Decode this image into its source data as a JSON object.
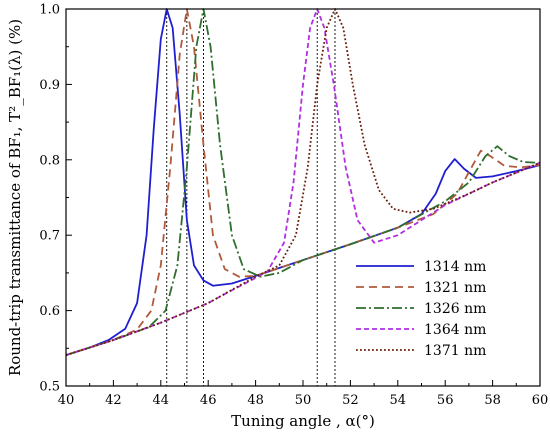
{
  "chart_data": {
    "type": "line",
    "xlabel": "Tuning angle , α(°)",
    "ylabel": "Round-trip transmittance of BF₁, T²_BF₁(λ) (%)",
    "xlim": [
      40,
      60
    ],
    "ylim": [
      0.5,
      1.0
    ],
    "xticks": [
      "40",
      "42",
      "44",
      "46",
      "48",
      "50",
      "52",
      "54",
      "56",
      "58",
      "60"
    ],
    "yticks": [
      "0.5",
      "0.6",
      "0.7",
      "0.8",
      "0.9",
      "1.0"
    ],
    "grid": false,
    "legend_position": "bottom-right",
    "vertical_markers": [
      44.25,
      45.1,
      45.8,
      50.6,
      51.35
    ],
    "series": [
      {
        "name": "1314 nm",
        "color": "#1f1fd0",
        "dash": "solid",
        "points": [
          [
            40,
            0.541
          ],
          [
            41,
            0.551
          ],
          [
            41.8,
            0.561
          ],
          [
            42.5,
            0.576
          ],
          [
            43,
            0.61
          ],
          [
            43.4,
            0.7
          ],
          [
            43.7,
            0.84
          ],
          [
            44,
            0.96
          ],
          [
            44.25,
            1.0
          ],
          [
            44.5,
            0.975
          ],
          [
            44.8,
            0.86
          ],
          [
            45.1,
            0.72
          ],
          [
            45.4,
            0.66
          ],
          [
            45.8,
            0.64
          ],
          [
            46.2,
            0.633
          ],
          [
            47,
            0.636
          ],
          [
            48,
            0.646
          ],
          [
            50,
            0.667
          ],
          [
            52,
            0.688
          ],
          [
            54,
            0.71
          ],
          [
            55,
            0.728
          ],
          [
            55.6,
            0.755
          ],
          [
            56,
            0.785
          ],
          [
            56.4,
            0.801
          ],
          [
            56.8,
            0.788
          ],
          [
            57.3,
            0.776
          ],
          [
            58,
            0.778
          ],
          [
            59,
            0.785
          ],
          [
            60,
            0.793
          ]
        ]
      },
      {
        "name": "1321 nm",
        "color": "#b05a3a",
        "dash": "8,5",
        "points": [
          [
            40,
            0.541
          ],
          [
            42,
            0.561
          ],
          [
            43,
            0.575
          ],
          [
            43.6,
            0.6
          ],
          [
            44,
            0.66
          ],
          [
            44.4,
            0.79
          ],
          [
            44.8,
            0.94
          ],
          [
            45.1,
            1.0
          ],
          [
            45.4,
            0.95
          ],
          [
            45.8,
            0.82
          ],
          [
            46.2,
            0.7
          ],
          [
            46.7,
            0.655
          ],
          [
            47.3,
            0.645
          ],
          [
            48,
            0.646
          ],
          [
            50,
            0.667
          ],
          [
            52,
            0.688
          ],
          [
            54,
            0.71
          ],
          [
            55.5,
            0.728
          ],
          [
            56.5,
            0.755
          ],
          [
            57.2,
            0.795
          ],
          [
            57.5,
            0.812
          ],
          [
            57.9,
            0.805
          ],
          [
            58.5,
            0.792
          ],
          [
            59.2,
            0.79
          ],
          [
            60,
            0.793
          ]
        ]
      },
      {
        "name": "1326 nm",
        "color": "#2e6e2e",
        "dash": "10,3,2,3",
        "points": [
          [
            40,
            0.541
          ],
          [
            42,
            0.561
          ],
          [
            43.5,
            0.578
          ],
          [
            44.2,
            0.6
          ],
          [
            44.7,
            0.66
          ],
          [
            45.1,
            0.79
          ],
          [
            45.5,
            0.95
          ],
          [
            45.8,
            1.0
          ],
          [
            46.1,
            0.95
          ],
          [
            46.5,
            0.82
          ],
          [
            47,
            0.7
          ],
          [
            47.5,
            0.655
          ],
          [
            48.2,
            0.645
          ],
          [
            49,
            0.65
          ],
          [
            50,
            0.667
          ],
          [
            52,
            0.688
          ],
          [
            54,
            0.71
          ],
          [
            56,
            0.745
          ],
          [
            57,
            0.77
          ],
          [
            57.7,
            0.805
          ],
          [
            58.2,
            0.818
          ],
          [
            58.7,
            0.805
          ],
          [
            59.3,
            0.797
          ],
          [
            60,
            0.796
          ]
        ]
      },
      {
        "name": "1364 nm",
        "color": "#b030e0",
        "dash": "5,3",
        "points": [
          [
            40,
            0.541
          ],
          [
            42,
            0.561
          ],
          [
            44,
            0.584
          ],
          [
            46,
            0.61
          ],
          [
            47,
            0.627
          ],
          [
            47.8,
            0.64
          ],
          [
            48.5,
            0.652
          ],
          [
            49.2,
            0.69
          ],
          [
            49.6,
            0.77
          ],
          [
            50,
            0.9
          ],
          [
            50.3,
            0.975
          ],
          [
            50.6,
            1.0
          ],
          [
            50.9,
            0.975
          ],
          [
            51.3,
            0.9
          ],
          [
            51.8,
            0.79
          ],
          [
            52.3,
            0.72
          ],
          [
            53,
            0.69
          ],
          [
            54,
            0.7
          ],
          [
            55,
            0.72
          ],
          [
            56,
            0.74
          ],
          [
            57,
            0.755
          ],
          [
            58,
            0.77
          ],
          [
            59,
            0.783
          ],
          [
            60,
            0.796
          ]
        ]
      },
      {
        "name": "1371 nm",
        "color": "#6a1f0a",
        "dash": "1.8,2.2",
        "points": [
          [
            40,
            0.541
          ],
          [
            42,
            0.561
          ],
          [
            44,
            0.584
          ],
          [
            46,
            0.61
          ],
          [
            48,
            0.645
          ],
          [
            49,
            0.66
          ],
          [
            49.7,
            0.7
          ],
          [
            50.2,
            0.79
          ],
          [
            50.6,
            0.9
          ],
          [
            51,
            0.975
          ],
          [
            51.35,
            1.0
          ],
          [
            51.7,
            0.975
          ],
          [
            52.1,
            0.9
          ],
          [
            52.6,
            0.82
          ],
          [
            53.2,
            0.76
          ],
          [
            53.8,
            0.735
          ],
          [
            54.5,
            0.73
          ],
          [
            55.5,
            0.735
          ],
          [
            57,
            0.755
          ],
          [
            58,
            0.77
          ],
          [
            59,
            0.783
          ],
          [
            60,
            0.796
          ]
        ]
      }
    ]
  }
}
